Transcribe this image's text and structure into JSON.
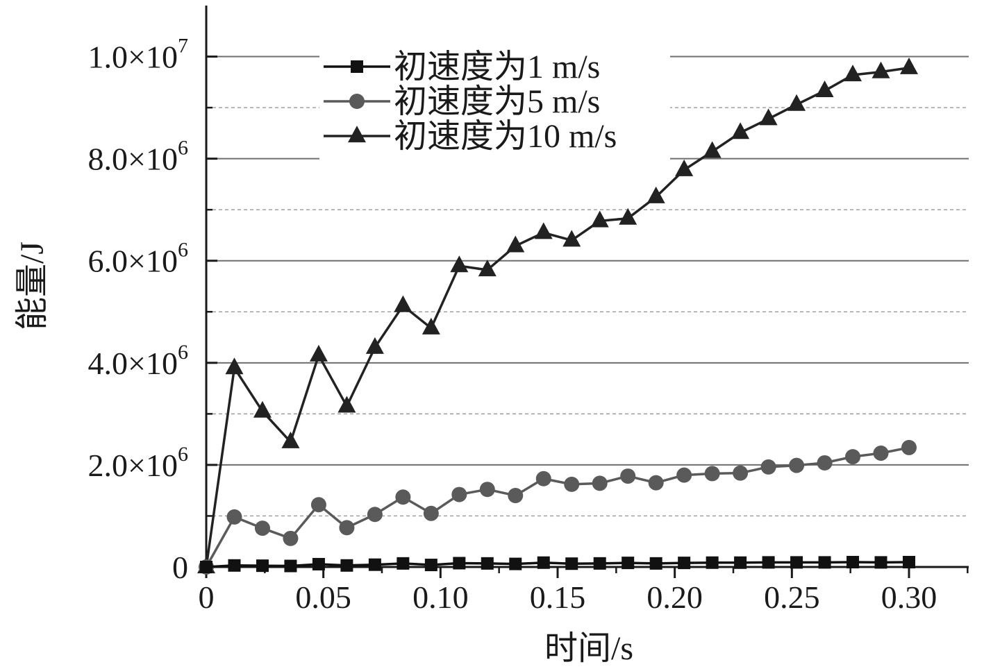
{
  "chart_data": {
    "type": "line",
    "xlabel": "时间/s",
    "ylabel": "能量/J",
    "xlim": [
      0,
      0.325
    ],
    "ylim": [
      0,
      11000000
    ],
    "x_ticks": [
      {
        "value": 0,
        "label": "0"
      },
      {
        "value": 0.05,
        "label": "0.05"
      },
      {
        "value": 0.1,
        "label": "0.10"
      },
      {
        "value": 0.15,
        "label": "0.15"
      },
      {
        "value": 0.2,
        "label": "0.20"
      },
      {
        "value": 0.25,
        "label": "0.25"
      },
      {
        "value": 0.3,
        "label": "0.30"
      }
    ],
    "y_ticks": [
      {
        "value": 0,
        "mantissa": "0",
        "exponent": ""
      },
      {
        "value": 2000000,
        "mantissa": "2.0×10",
        "exponent": "6"
      },
      {
        "value": 4000000,
        "mantissa": "4.0×10",
        "exponent": "6"
      },
      {
        "value": 6000000,
        "mantissa": "6.0×10",
        "exponent": "6"
      },
      {
        "value": 8000000,
        "mantissa": "8.0×10",
        "exponent": "6"
      },
      {
        "value": 10000000,
        "mantissa": "1.0×10",
        "exponent": "7"
      }
    ],
    "y_minor_grid": [
      1000000,
      3000000,
      5000000,
      7000000,
      9000000
    ],
    "grid": true,
    "legend_position": "top-center",
    "x": [
      0,
      0.012,
      0.024,
      0.036,
      0.048,
      0.06,
      0.072,
      0.084,
      0.096,
      0.108,
      0.12,
      0.132,
      0.144,
      0.156,
      0.168,
      0.18,
      0.192,
      0.204,
      0.216,
      0.228,
      0.24,
      0.252,
      0.264,
      0.276,
      0.288,
      0.3
    ],
    "series": [
      {
        "name": "初速度为1 m/s",
        "marker": "square",
        "color": "#111111",
        "values": [
          0,
          30000,
          25000,
          20000,
          55000,
          30000,
          45000,
          70000,
          40000,
          75000,
          70000,
          60000,
          85000,
          65000,
          70000,
          80000,
          70000,
          80000,
          85000,
          85000,
          90000,
          90000,
          90000,
          95000,
          90000,
          95000
        ]
      },
      {
        "name": "初速度为5 m/s",
        "marker": "circle",
        "color": "#5a5a5a",
        "values": [
          0,
          980000,
          760000,
          560000,
          1220000,
          770000,
          1030000,
          1370000,
          1050000,
          1420000,
          1520000,
          1400000,
          1730000,
          1620000,
          1640000,
          1780000,
          1650000,
          1800000,
          1830000,
          1840000,
          1960000,
          1990000,
          2040000,
          2160000,
          2230000,
          2340000
        ]
      },
      {
        "name": "初速度为10 m/s",
        "marker": "triangle",
        "color": "#222222",
        "values": [
          0,
          3900000,
          3050000,
          2450000,
          4150000,
          3150000,
          4300000,
          5120000,
          4680000,
          5900000,
          5820000,
          6290000,
          6550000,
          6400000,
          6780000,
          6830000,
          7250000,
          7780000,
          8140000,
          8510000,
          8780000,
          9060000,
          9330000,
          9640000,
          9700000,
          9780000
        ]
      }
    ]
  }
}
